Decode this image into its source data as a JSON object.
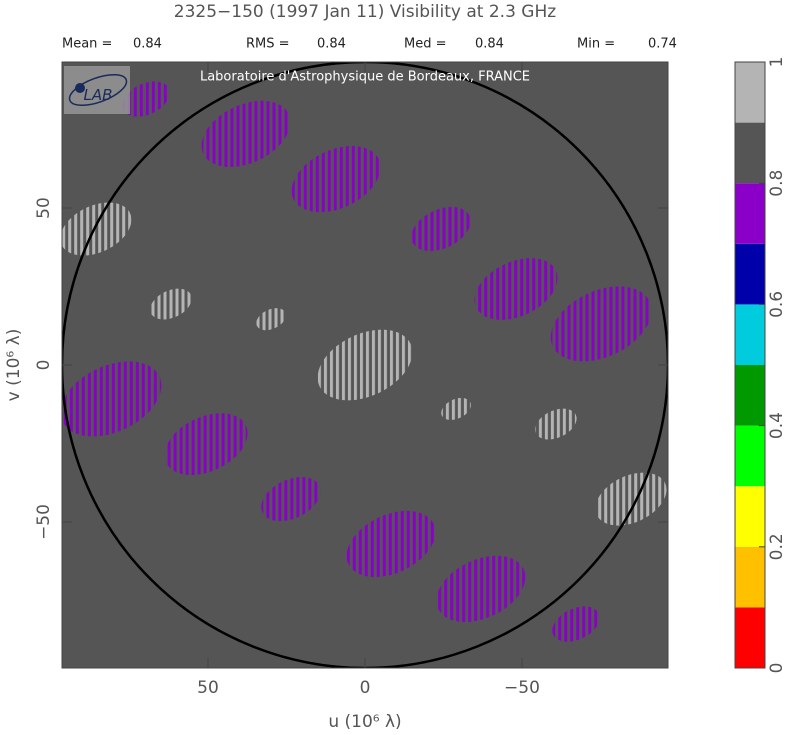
{
  "chart_data": {
    "type": "uv-visibility",
    "title": "2325−150  (1997 Jan 11)   Visibility at  2.3 GHz",
    "stats": [
      {
        "label": "Mean =",
        "value": 0.84
      },
      {
        "label": "RMS =",
        "value": 0.84
      },
      {
        "label": "Med =",
        "value": 0.84
      },
      {
        "label": "Min =",
        "value": 0.74
      }
    ],
    "credit": "Laboratoire d'Astrophysique de Bordeaux, FRANCE",
    "logo_text": "LAB",
    "xlabel": "u  (10⁶ λ)",
    "ylabel": "v  (10⁶ λ)",
    "xlim": [
      96.5,
      -96.5
    ],
    "ylim": [
      -96.5,
      96.5
    ],
    "xticks": [
      50,
      0,
      {
        "value": -50,
        "label": "−50"
      }
    ],
    "yticks": [
      50,
      0,
      {
        "value": -50,
        "label": "−50"
      }
    ],
    "uv_circle_radius": 96.5,
    "background_value": 0.84,
    "patches": [
      {
        "u": 69.7,
        "v": 84.7,
        "value": 0.76,
        "size": 8
      },
      {
        "u": 37.9,
        "v": 73.6,
        "value": 0.76,
        "size": 15
      },
      {
        "u": 9.2,
        "v": 59.2,
        "value": 0.75,
        "size": 15
      },
      {
        "u": -24.2,
        "v": 43.3,
        "value": 0.77,
        "size": 10
      },
      {
        "u": -48.1,
        "v": 24.2,
        "value": 0.75,
        "size": 14
      },
      {
        "u": -75.2,
        "v": 13.1,
        "value": 0.74,
        "size": 17
      },
      {
        "u": 80.9,
        "v": -10.8,
        "value": 0.74,
        "size": 17
      },
      {
        "u": 50.6,
        "v": -25.2,
        "value": 0.75,
        "size": 14
      },
      {
        "u": 23.6,
        "v": -42.7,
        "value": 0.77,
        "size": 10
      },
      {
        "u": -8.3,
        "v": -57.0,
        "value": 0.75,
        "size": 15
      },
      {
        "u": -36.9,
        "v": -71.3,
        "value": 0.76,
        "size": 15
      },
      {
        "u": -67.2,
        "v": -82.5,
        "value": 0.76,
        "size": 8
      },
      {
        "u": 85.7,
        "v": 43.3,
        "value": 0.93,
        "size": 12
      },
      {
        "u": 0,
        "v": 0,
        "value": 0.93,
        "size": 16
      },
      {
        "u": 61.8,
        "v": 19.4,
        "value": 0.92,
        "size": 7
      },
      {
        "u": 29.9,
        "v": 14.6,
        "value": 0.92,
        "size": 5
      },
      {
        "u": -29,
        "v": -14,
        "value": 0.92,
        "size": 5
      },
      {
        "u": -60.8,
        "v": -18.8,
        "value": 0.92,
        "size": 7
      },
      {
        "u": -84.7,
        "v": -42.7,
        "value": 0.93,
        "size": 12
      }
    ],
    "colorbar": {
      "lim": [
        0,
        1
      ],
      "levels": [
        0,
        0.1,
        0.2,
        0.3,
        0.4,
        0.5,
        0.6,
        0.7,
        0.8,
        0.9,
        1
      ],
      "colors": [
        "#ff0000",
        "#ffc000",
        "#ffff00",
        "#00ff00",
        "#009900",
        "#00ccdd",
        "#0000aa",
        "#8a00c8",
        "#555555",
        "#b4b4b4"
      ],
      "ticks": [
        0,
        0.2,
        0.4,
        0.6,
        0.8,
        1
      ]
    }
  }
}
